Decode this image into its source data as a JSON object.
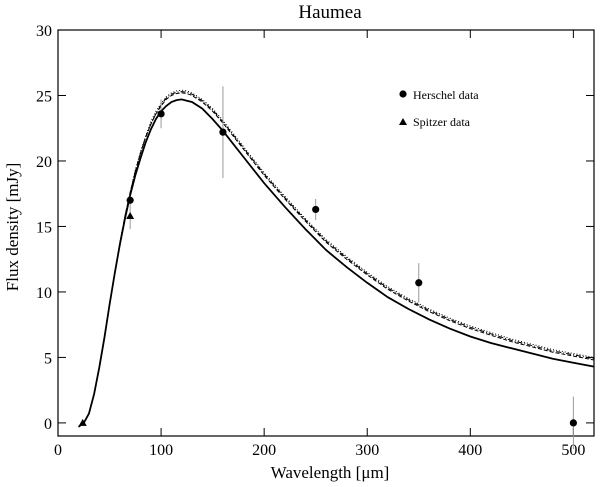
{
  "chart_data": {
    "type": "scatter",
    "title": "Haumea",
    "xlabel": "Wavelength [μm]",
    "ylabel": "Flux density [mJy]",
    "xlim": [
      0,
      520
    ],
    "ylim": [
      -1,
      30
    ],
    "xticks": [
      0,
      100,
      200,
      300,
      400,
      500
    ],
    "yticks": [
      0,
      5,
      10,
      15,
      20,
      25,
      30
    ],
    "grid": false,
    "legend_position": "top-right",
    "series": [
      {
        "name": "Herschel data",
        "marker": "circle",
        "points": [
          {
            "x": 70,
            "y": 17.0,
            "err": 0.3
          },
          {
            "x": 100,
            "y": 23.6,
            "err": 1.1
          },
          {
            "x": 160,
            "y": 22.2,
            "err": 3.5
          },
          {
            "x": 250,
            "y": 16.3,
            "err": 0.8
          },
          {
            "x": 350,
            "y": 10.7,
            "err": 1.5
          },
          {
            "x": 500,
            "y": 0.0,
            "err": 2.0
          }
        ]
      },
      {
        "name": "Spitzer data",
        "marker": "triangle",
        "points": [
          {
            "x": 24,
            "y": 0.0,
            "err": 0.0
          },
          {
            "x": 70,
            "y": 15.8,
            "err": 1.0
          }
        ]
      }
    ],
    "models": [
      {
        "style": "solid",
        "x": [
          20,
          25,
          30,
          35,
          40,
          45,
          50,
          55,
          60,
          65,
          70,
          75,
          80,
          85,
          90,
          95,
          100,
          105,
          110,
          115,
          120,
          125,
          130,
          140,
          150,
          160,
          170,
          180,
          190,
          200,
          220,
          240,
          250,
          260,
          280,
          300,
          320,
          340,
          350,
          360,
          380,
          400,
          420,
          440,
          460,
          480,
          500,
          520
        ],
        "y": [
          -0.3,
          0,
          0.7,
          2.2,
          4.2,
          6.5,
          9.0,
          11.4,
          13.6,
          15.6,
          17.4,
          18.9,
          20.2,
          21.4,
          22.4,
          23.2,
          23.8,
          24.2,
          24.5,
          24.65,
          24.7,
          24.6,
          24.5,
          24.0,
          23.2,
          22.3,
          21.3,
          20.3,
          19.3,
          18.3,
          16.5,
          14.8,
          14.0,
          13.2,
          11.9,
          10.7,
          9.6,
          8.7,
          8.3,
          7.9,
          7.2,
          6.6,
          6.1,
          5.7,
          5.3,
          4.9,
          4.6,
          4.3
        ]
      },
      {
        "style": "dashed",
        "x": [
          20,
          25,
          30,
          35,
          40,
          45,
          50,
          55,
          60,
          65,
          70,
          75,
          80,
          85,
          90,
          95,
          100,
          105,
          110,
          115,
          120,
          125,
          130,
          140,
          150,
          160,
          170,
          180,
          190,
          200,
          220,
          240,
          250,
          260,
          280,
          300,
          320,
          340,
          350,
          360,
          380,
          400,
          420,
          440,
          460,
          480,
          500,
          520
        ],
        "y": [
          -0.3,
          0,
          0.7,
          2.2,
          4.2,
          6.5,
          9.0,
          11.4,
          13.7,
          15.8,
          17.6,
          19.2,
          20.6,
          21.8,
          22.8,
          23.6,
          24.2,
          24.7,
          25.0,
          25.15,
          25.2,
          25.15,
          25.0,
          24.5,
          23.8,
          22.9,
          21.9,
          20.9,
          19.9,
          18.9,
          17.1,
          15.4,
          14.6,
          13.8,
          12.5,
          11.3,
          10.2,
          9.3,
          8.9,
          8.5,
          7.8,
          7.2,
          6.7,
          6.2,
          5.8,
          5.4,
          5.1,
          4.8
        ]
      },
      {
        "style": "dotted",
        "x": [
          20,
          25,
          30,
          35,
          40,
          45,
          50,
          55,
          60,
          65,
          70,
          75,
          80,
          85,
          90,
          95,
          100,
          105,
          110,
          115,
          120,
          125,
          130,
          140,
          150,
          160,
          170,
          180,
          190,
          200,
          220,
          240,
          250,
          260,
          280,
          300,
          320,
          340,
          350,
          360,
          380,
          400,
          420,
          440,
          460,
          480,
          500,
          520
        ],
        "y": [
          -0.3,
          0,
          0.7,
          2.2,
          4.2,
          6.5,
          9.0,
          11.4,
          13.7,
          15.8,
          17.6,
          19.3,
          20.7,
          21.9,
          23.0,
          23.8,
          24.4,
          24.9,
          25.2,
          25.35,
          25.4,
          25.35,
          25.2,
          24.7,
          24.0,
          23.1,
          22.1,
          21.1,
          20.1,
          19.1,
          17.3,
          15.6,
          14.8,
          14.0,
          12.7,
          11.5,
          10.4,
          9.5,
          9.1,
          8.7,
          8.0,
          7.4,
          6.9,
          6.4,
          6.0,
          5.6,
          5.3,
          5.0
        ]
      },
      {
        "style": "dashdot",
        "x": [
          20,
          25,
          30,
          35,
          40,
          45,
          50,
          55,
          60,
          65,
          70,
          75,
          80,
          85,
          90,
          95,
          100,
          105,
          110,
          115,
          120,
          125,
          130,
          140,
          150,
          160,
          170,
          180,
          190,
          200,
          220,
          240,
          250,
          260,
          280,
          300,
          320,
          340,
          350,
          360,
          380,
          400,
          420,
          440,
          460,
          480,
          500,
          520
        ],
        "y": [
          -0.3,
          0,
          0.7,
          2.2,
          4.2,
          6.5,
          9.0,
          11.4,
          13.7,
          15.8,
          17.6,
          19.2,
          20.6,
          21.8,
          22.8,
          23.6,
          24.3,
          24.8,
          25.1,
          25.25,
          25.3,
          25.25,
          25.1,
          24.6,
          23.9,
          23.0,
          22.0,
          21.0,
          20.0,
          19.0,
          17.2,
          15.5,
          14.7,
          13.9,
          12.6,
          11.4,
          10.3,
          9.4,
          9.0,
          8.6,
          7.9,
          7.3,
          6.8,
          6.3,
          5.9,
          5.5,
          5.2,
          4.9
        ]
      }
    ]
  },
  "colors": {
    "axis": "#000000",
    "errorbar": "#999999",
    "marker": "#000000"
  }
}
